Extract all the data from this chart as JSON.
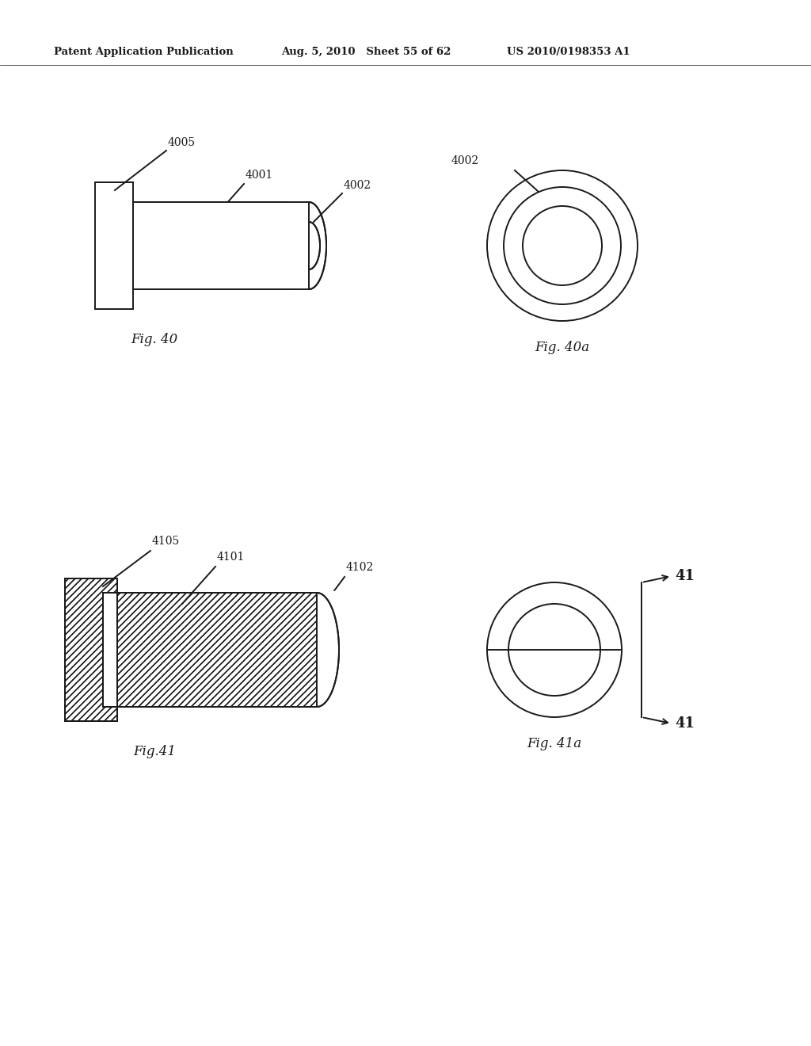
{
  "header_left": "Patent Application Publication",
  "header_mid": "Aug. 5, 2010   Sheet 55 of 62",
  "header_right": "US 2010/0198353 A1",
  "bg_color": "#ffffff",
  "line_color": "#1a1a1a",
  "fig40_label": "Fig. 40",
  "fig40a_label": "Fig. 40a",
  "fig41_label": "Fig.41",
  "fig41a_label": "Fig. 41a",
  "label_4005": "4005",
  "label_4001": "4001",
  "label_4002_fig40": "4002",
  "label_4002_fig40a": "4002",
  "label_4101": "4101",
  "label_4102": "4102",
  "label_4105": "4105",
  "label_41": "41",
  "font_size_header": 9.5,
  "font_size_labels": 10,
  "font_size_fig": 12
}
